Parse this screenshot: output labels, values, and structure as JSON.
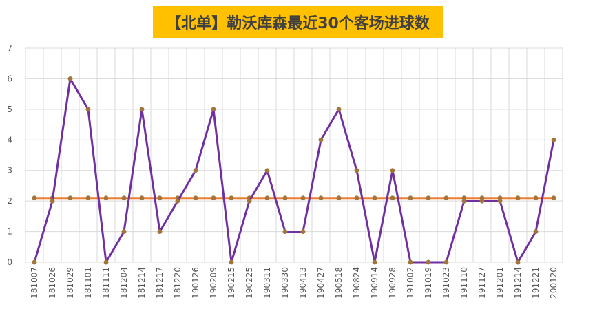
{
  "chart_data": {
    "type": "line",
    "title": "【北单】勒沃库森最近30个客场进球数",
    "xlabel": "",
    "ylabel": "",
    "categories": [
      "181007",
      "181026",
      "181029",
      "181101",
      "181111",
      "181204",
      "181214",
      "181217",
      "181220",
      "190126",
      "190209",
      "190215",
      "190225",
      "190311",
      "190330",
      "190413",
      "190427",
      "190518",
      "190824",
      "190914",
      "190928",
      "191002",
      "191019",
      "191023",
      "191110",
      "191127",
      "191201",
      "191214",
      "191221",
      "200120"
    ],
    "series": [
      {
        "values": [
          0,
          2,
          6,
          5,
          0,
          1,
          5,
          1,
          2,
          3,
          5,
          0,
          2,
          3,
          1,
          1,
          4,
          5,
          3,
          0,
          3,
          0,
          0,
          0,
          2,
          2,
          2,
          0,
          1,
          4
        ],
        "color": "#7030a0",
        "marker_color": "#a0763c"
      },
      {
        "values": [
          2.1,
          2.1,
          2.1,
          2.1,
          2.1,
          2.1,
          2.1,
          2.1,
          2.1,
          2.1,
          2.1,
          2.1,
          2.1,
          2.1,
          2.1,
          2.1,
          2.1,
          2.1,
          2.1,
          2.1,
          2.1,
          2.1,
          2.1,
          2.1,
          2.1,
          2.1,
          2.1,
          2.1,
          2.1,
          2.1
        ],
        "color": "#ed7d31",
        "marker_color": "#a0763c"
      }
    ],
    "ylim": [
      0,
      7
    ],
    "yticks": [
      0,
      1,
      2,
      3,
      4,
      5,
      6,
      7
    ],
    "grid": true,
    "legend": "none"
  }
}
